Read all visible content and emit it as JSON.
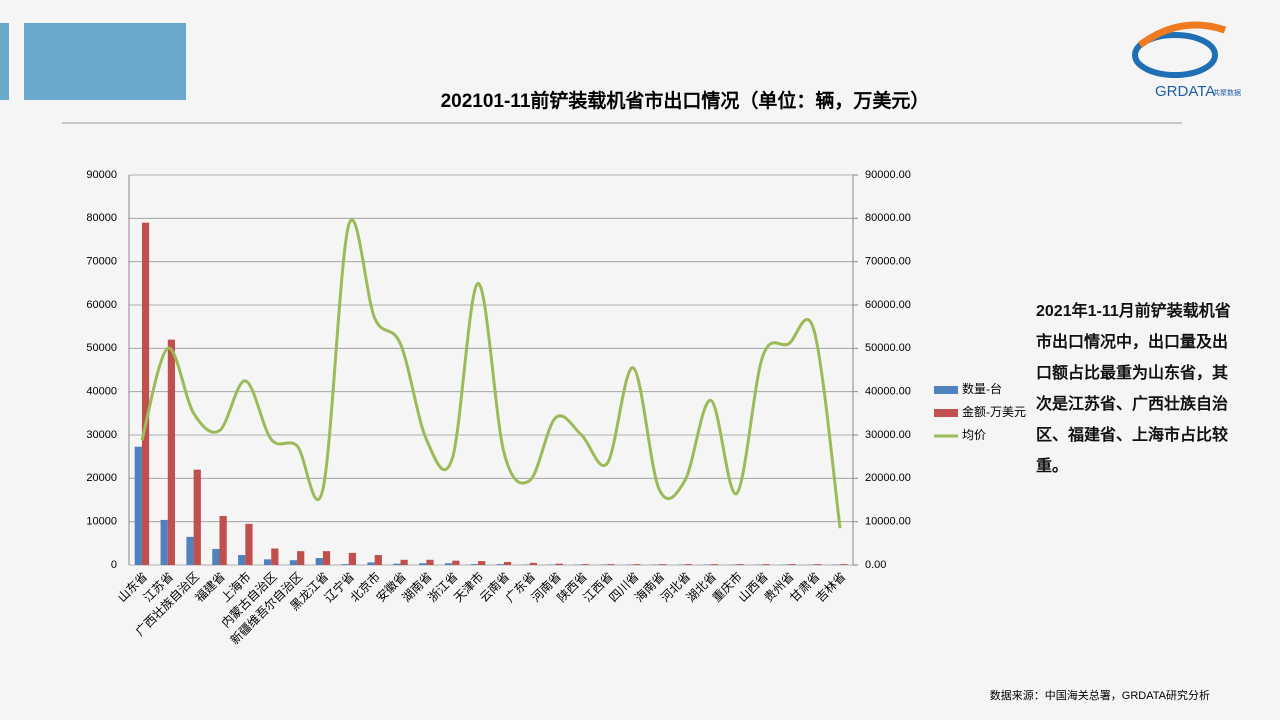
{
  "logo": {
    "brand": "GRDATA",
    "sub": "共聚数据"
  },
  "chart_data": {
    "type": "bar-line",
    "title": "202101-11前铲装载机省市出口情况（单位：辆，万美元）",
    "categories": [
      "山东省",
      "江苏省",
      "广西壮族自治区",
      "福建省",
      "上海市",
      "内蒙古自治区",
      "新疆维吾尔自治区",
      "黑龙江省",
      "辽宁省",
      "北京市",
      "安徽省",
      "湖南省",
      "浙江省",
      "天津市",
      "云南省",
      "广东省",
      "河南省",
      "陕西省",
      "江西省",
      "四川省",
      "海南省",
      "河北省",
      "湖北省",
      "重庆市",
      "山西省",
      "贵州省",
      "甘肃省",
      "吉林省"
    ],
    "series": [
      {
        "name": "数量-台",
        "color": "#4f81bd",
        "type": "bar",
        "values": [
          27300,
          10400,
          6500,
          3700,
          2300,
          1300,
          1100,
          1600,
          200,
          600,
          300,
          400,
          400,
          200,
          200,
          100,
          100,
          100,
          100,
          100,
          100,
          100,
          100,
          100,
          100,
          100,
          100,
          100
        ]
      },
      {
        "name": "金额-万美元",
        "color": "#c0504d",
        "type": "bar",
        "values": [
          79000,
          52000,
          22000,
          11300,
          9500,
          3800,
          3200,
          3200,
          2800,
          2300,
          1200,
          1200,
          1000,
          900,
          700,
          500,
          300,
          200,
          200,
          200,
          200,
          200,
          200,
          200,
          200,
          200,
          200,
          200
        ]
      },
      {
        "name": "均价",
        "color": "#9bbb59",
        "type": "line",
        "axis": "y2",
        "values": [
          28800,
          50000,
          35000,
          31000,
          42500,
          29000,
          27500,
          17500,
          78500,
          57000,
          51000,
          29000,
          24500,
          65000,
          26000,
          19500,
          34000,
          30000,
          23500,
          45500,
          17500,
          19500,
          38000,
          16500,
          48000,
          51000,
          54000,
          8500
        ]
      }
    ],
    "ylim": [
      0,
      90000
    ],
    "yticks": [
      0,
      10000,
      20000,
      30000,
      40000,
      50000,
      60000,
      70000,
      80000,
      90000
    ],
    "y2lim": [
      0,
      90000
    ],
    "y2ticks": [
      {
        "value": 0,
        "label": "0.00"
      },
      {
        "value": 10000,
        "label": "10000.00"
      },
      {
        "value": 20000,
        "label": "20000.00"
      },
      {
        "value": 30000,
        "label": "30000.00"
      },
      {
        "value": 40000,
        "label": "40000.00"
      },
      {
        "value": 50000,
        "label": "50000.00"
      },
      {
        "value": 60000,
        "label": "60000.00"
      },
      {
        "value": 70000,
        "label": "70000.00"
      },
      {
        "value": 80000,
        "label": "80000.00"
      },
      {
        "value": 90000,
        "label": "90000.00"
      }
    ],
    "grid": true,
    "legend": "right"
  },
  "note": "2021年1-11月前铲装载机省市出口情况中，出口量及出口额占比最重为山东省，其次是江苏省、广西壮族自治区、福建省、上海市占比较重。",
  "source": "数据来源：中国海关总署，GRDATA研究分析"
}
